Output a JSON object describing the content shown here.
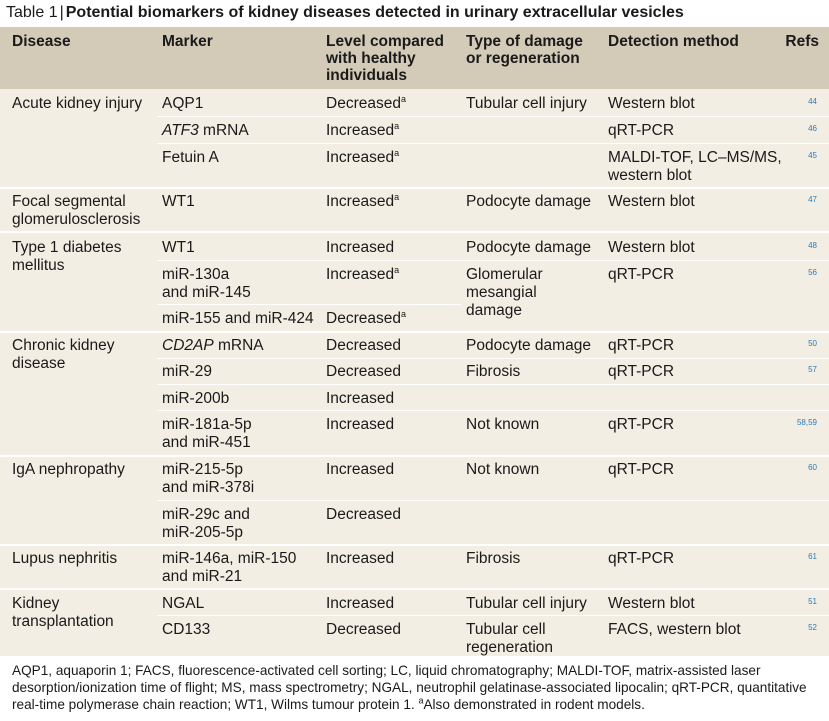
{
  "caption": {
    "label": "Table 1",
    "separator": "|",
    "title": "Potential biomarkers of kidney diseases detected in urinary extracellular vesicles"
  },
  "headers": {
    "disease": "Disease",
    "marker": "Marker",
    "level": "Level compared\nwith healthy\nindividuals",
    "damage": "Type of damage\nor regeneration",
    "method": "Detection method",
    "refs": "Refs"
  },
  "superscript": "a",
  "rows": {
    "aki": {
      "disease": "Acute kidney injury",
      "r1": {
        "marker": "AQP1",
        "level": "Decreased",
        "damage": "Tubular cell injury",
        "method": "Western blot",
        "ref": "44"
      },
      "r2": {
        "marker_italic": "ATF3",
        "marker_rest": " mRNA",
        "level": "Increased",
        "method": "qRT-PCR",
        "ref": "46"
      },
      "r3": {
        "marker": "Fetuin A",
        "level": "Increased",
        "method": "MALDI-TOF, LC–MS/MS,\nwestern blot",
        "ref": "45"
      }
    },
    "fsgs": {
      "disease": "Focal segmental\nglomerulosclerosis",
      "r1": {
        "marker": "WT1",
        "level": "Increased",
        "damage": "Podocyte damage",
        "method": "Western blot",
        "ref": "47"
      }
    },
    "t1d": {
      "disease": "Type 1 diabetes\nmellitus",
      "r1": {
        "marker": "WT1",
        "level": "Increased",
        "damage": "Podocyte damage",
        "method": "Western blot",
        "ref": "48"
      },
      "r2": {
        "marker": "miR-130a\nand miR-145",
        "level": "Increased",
        "damage": "Glomerular\nmesangial\ndamage",
        "method": "qRT-PCR",
        "ref": "56"
      },
      "r3": {
        "marker": "miR-155 and miR-424",
        "level": "Decreased"
      }
    },
    "ckd": {
      "disease": "Chronic kidney\ndisease",
      "r1": {
        "marker_italic": "CD2AP",
        "marker_rest": " mRNA",
        "level": "Decreased",
        "damage": "Podocyte damage",
        "method": "qRT-PCR",
        "ref": "50"
      },
      "r2": {
        "marker": "miR-29",
        "level": "Decreased",
        "damage": "Fibrosis",
        "method": "qRT-PCR",
        "ref": "57"
      },
      "r3": {
        "marker": "miR-200b",
        "level": "Increased"
      },
      "r4": {
        "marker": "miR-181a-5p\nand miR-451",
        "level": "Increased",
        "damage": "Not known",
        "method": "qRT-PCR",
        "ref": "58,59"
      }
    },
    "iga": {
      "disease": "IgA nephropathy",
      "r1": {
        "marker": "miR-215-5p\nand miR-378i",
        "level": "Increased",
        "damage": "Not known",
        "method": "qRT-PCR",
        "ref": "60"
      },
      "r2": {
        "marker": "miR-29c and\nmiR-205-5p",
        "level": "Decreased"
      }
    },
    "lupus": {
      "disease": "Lupus nephritis",
      "r1": {
        "marker": "miR-146a, miR-150\nand miR-21",
        "level": "Increased",
        "damage": "Fibrosis",
        "method": "qRT-PCR",
        "ref": "61"
      }
    },
    "ktx": {
      "disease": "Kidney\ntransplantation",
      "r1": {
        "marker": "NGAL",
        "level": "Increased",
        "damage": "Tubular cell injury",
        "method": "Western blot",
        "ref": "51"
      },
      "r2": {
        "marker": "CD133",
        "level": "Decreased",
        "damage": "Tubular cell\nregeneration",
        "method": "FACS, western blot",
        "ref": "52"
      }
    }
  },
  "footnote": "AQP1, aquaporin 1; FACS, fluorescence-activated cell sorting; LC, liquid chromatography; MALDI-TOF, matrix-assisted laser desorption/ionization time of flight; MS, mass spectrometry; NGAL, neutrophil gelatinase-associated lipocalin; qRT-PCR, quantitative real-time polymerase chain reaction; WT1, Wilms tumour protein 1. ",
  "footnote_sup": "a",
  "footnote_end": "Also demonstrated in rodent models."
}
